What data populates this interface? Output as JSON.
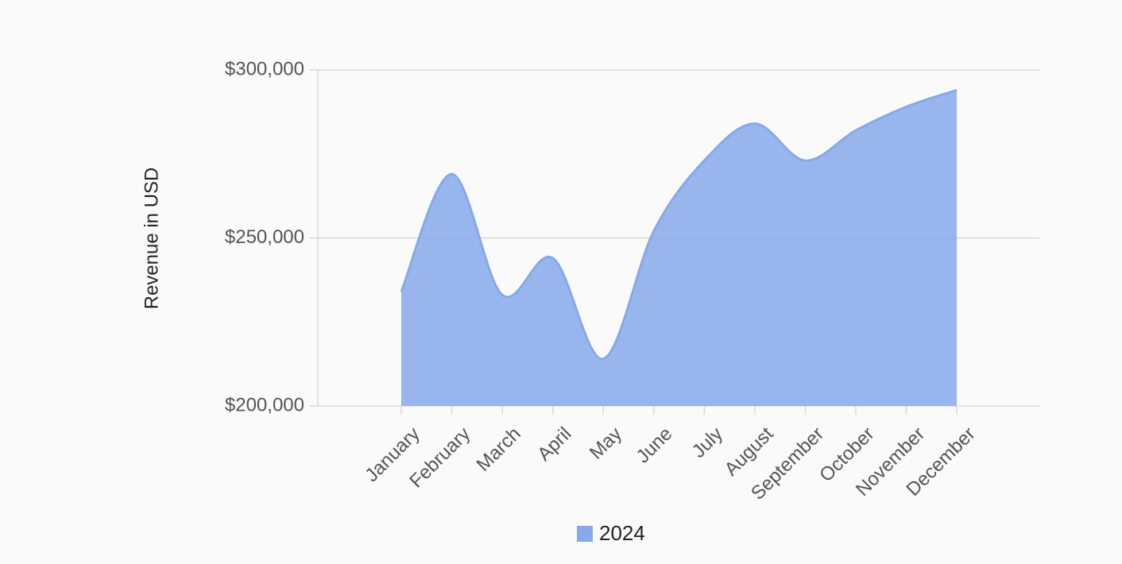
{
  "chart_data": {
    "type": "area",
    "y_label": "Revenue in USD",
    "categories": [
      "January",
      "February",
      "March",
      "April",
      "May",
      "June",
      "July",
      "August",
      "September",
      "October",
      "November",
      "December"
    ],
    "series": [
      {
        "name": "2024",
        "color": "#86a9ea",
        "values": [
          234000,
          269000,
          233000,
          244000,
          214000,
          252000,
          273000,
          284000,
          273000,
          282000,
          289000,
          294000
        ]
      }
    ],
    "ylim": [
      200000,
      300000
    ],
    "yticks": [
      {
        "value": 200000,
        "label": "$200,000"
      },
      {
        "value": 250000,
        "label": "$250,000"
      },
      {
        "value": 300000,
        "label": "$300,000"
      }
    ],
    "grid": true,
    "legend": "bottom"
  }
}
